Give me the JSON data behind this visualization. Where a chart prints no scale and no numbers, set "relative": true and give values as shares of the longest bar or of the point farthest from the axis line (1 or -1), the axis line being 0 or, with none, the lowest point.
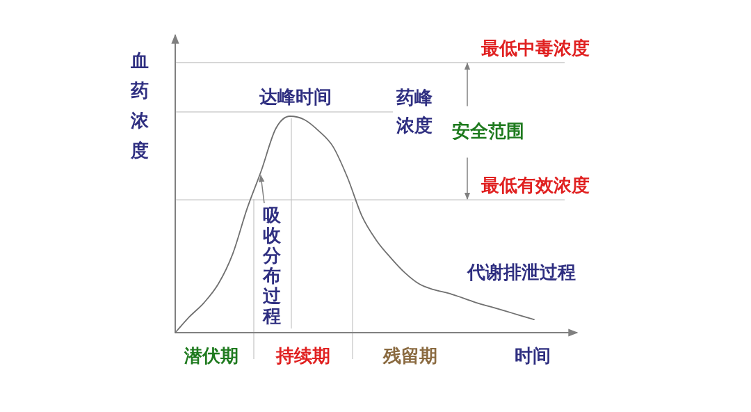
{
  "chart_data": {
    "type": "line",
    "relative": true,
    "ylabel": "血药浓度",
    "xlabel": "时间",
    "categories": [
      null,
      null,
      null,
      null,
      null,
      null,
      null,
      null,
      null,
      null,
      null,
      null,
      null,
      null,
      null,
      null,
      null,
      null,
      null,
      null,
      null,
      null,
      null,
      null,
      null,
      null
    ],
    "series": [
      {
        "color": "#707070",
        "values": [
          0,
          0.074,
          0.138,
          0.225,
          0.363,
          0.572,
          0.749,
          0.942,
          1.0,
          0.984,
          0.932,
          0.859,
          0.717,
          0.54,
          0.428,
          0.347,
          0.277,
          0.225,
          0.199,
          0.183,
          0.161,
          0.138,
          0.119,
          0.1,
          0.08,
          0.061
        ]
      }
    ],
    "ref_lines": [
      {
        "axis": "y",
        "value": 1.248,
        "label": "最低中毒浓度"
      },
      {
        "axis": "y",
        "value": 1.02,
        "label": "药峰浓度"
      },
      {
        "axis": "y",
        "value": 0.614,
        "label": "最低有效浓度"
      }
    ],
    "annotations": [
      "吸收分布过程",
      "代谢排泄过程",
      "安全范围",
      "达峰时间",
      "潜伏期",
      "持续期",
      "残留期"
    ]
  }
}
